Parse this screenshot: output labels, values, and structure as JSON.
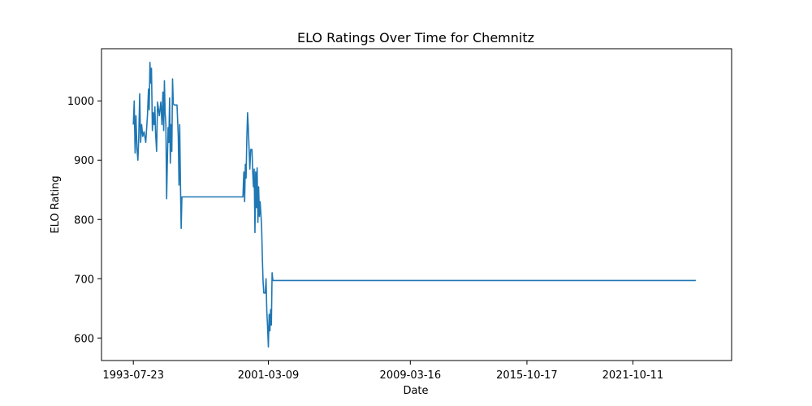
{
  "chart_data": {
    "type": "line",
    "title": "ELO Ratings Over Time for Chemnitz",
    "xlabel": "Date",
    "ylabel": "ELO Rating",
    "x_ticks": [
      "1993-07-23",
      "2001-03-09",
      "2009-03-16",
      "2015-10-17",
      "2021-10-11"
    ],
    "x_tick_values": [
      "1993-07-23",
      "2001-03-09",
      "2009-03-16",
      "2015-10-17",
      "2021-10-11"
    ],
    "y_ticks": [
      600,
      700,
      800,
      900,
      1000
    ],
    "xlim": [
      "1991-10-05",
      "2027-05-10"
    ],
    "ylim": [
      562,
      1088
    ],
    "grid": false,
    "legend": false,
    "series": [
      {
        "color": "#1f77b4",
        "points": [
          [
            "1993-07-23",
            960
          ],
          [
            "1993-08-10",
            1000
          ],
          [
            "1993-08-28",
            912
          ],
          [
            "1993-09-15",
            975
          ],
          [
            "1993-10-05",
            920
          ],
          [
            "1993-10-25",
            900
          ],
          [
            "1993-11-12",
            940
          ],
          [
            "1993-12-01",
            1012
          ],
          [
            "1993-12-20",
            930
          ],
          [
            "1994-01-10",
            960
          ],
          [
            "1994-02-02",
            940
          ],
          [
            "1994-03-01",
            948
          ],
          [
            "1994-04-05",
            930
          ],
          [
            "1994-05-10",
            975
          ],
          [
            "1994-06-01",
            1020
          ],
          [
            "1994-06-15",
            985
          ],
          [
            "1994-07-01",
            1065
          ],
          [
            "1994-07-15",
            1030
          ],
          [
            "1994-08-01",
            1055
          ],
          [
            "1994-08-20",
            950
          ],
          [
            "1994-09-05",
            980
          ],
          [
            "1994-09-25",
            960
          ],
          [
            "1994-10-10",
            990
          ],
          [
            "1994-10-25",
            945
          ],
          [
            "1994-11-15",
            915
          ],
          [
            "1994-12-05",
            998
          ],
          [
            "1995-01-10",
            975
          ],
          [
            "1995-02-10",
            998
          ],
          [
            "1995-03-05",
            960
          ],
          [
            "1995-03-25",
            1015
          ],
          [
            "1995-04-10",
            950
          ],
          [
            "1995-04-25",
            1034
          ],
          [
            "1995-05-10",
            980
          ],
          [
            "1995-05-25",
            960
          ],
          [
            "1995-06-10",
            835
          ],
          [
            "1995-06-25",
            900
          ],
          [
            "1995-07-10",
            955
          ],
          [
            "1995-07-25",
            930
          ],
          [
            "1995-08-10",
            1005
          ],
          [
            "1995-08-25",
            895
          ],
          [
            "1995-09-10",
            960
          ],
          [
            "1995-09-25",
            915
          ],
          [
            "1995-10-10",
            1037
          ],
          [
            "1995-10-25",
            995
          ],
          [
            "1995-11-15",
            993
          ],
          [
            "1996-01-10",
            993
          ],
          [
            "1996-02-05",
            940
          ],
          [
            "1996-02-20",
            858
          ],
          [
            "1996-03-05",
            960
          ],
          [
            "1996-03-20",
            866
          ],
          [
            "1996-04-05",
            785
          ],
          [
            "1996-04-20",
            838
          ],
          [
            "1999-10-01",
            838
          ],
          [
            "1999-10-20",
            880
          ],
          [
            "1999-11-05",
            830
          ],
          [
            "1999-11-20",
            893
          ],
          [
            "1999-12-05",
            870
          ],
          [
            "1999-12-20",
            935
          ],
          [
            "2000-01-05",
            980
          ],
          [
            "2000-01-20",
            955
          ],
          [
            "2000-02-05",
            920
          ],
          [
            "2000-02-20",
            885
          ],
          [
            "2000-03-10",
            918
          ],
          [
            "2000-04-05",
            918
          ],
          [
            "2000-04-20",
            880
          ],
          [
            "2000-05-05",
            855
          ],
          [
            "2000-05-20",
            885
          ],
          [
            "2000-06-05",
            778
          ],
          [
            "2000-06-20",
            880
          ],
          [
            "2000-07-05",
            820
          ],
          [
            "2000-07-20",
            887
          ],
          [
            "2000-08-05",
            795
          ],
          [
            "2000-08-20",
            855
          ],
          [
            "2000-09-05",
            805
          ],
          [
            "2000-09-20",
            830
          ],
          [
            "2000-10-05",
            810
          ],
          [
            "2000-10-20",
            790
          ],
          [
            "2000-11-05",
            735
          ],
          [
            "2000-11-20",
            695
          ],
          [
            "2000-12-05",
            676
          ],
          [
            "2001-01-05",
            676
          ],
          [
            "2001-01-20",
            700
          ],
          [
            "2001-02-05",
            645
          ],
          [
            "2001-02-20",
            620
          ],
          [
            "2001-03-09",
            585
          ],
          [
            "2001-03-25",
            640
          ],
          [
            "2001-04-10",
            612
          ],
          [
            "2001-04-25",
            648
          ],
          [
            "2001-05-10",
            622
          ],
          [
            "2001-05-25",
            710
          ],
          [
            "2001-06-10",
            697
          ],
          [
            "2025-05-01",
            697
          ]
        ]
      }
    ]
  }
}
